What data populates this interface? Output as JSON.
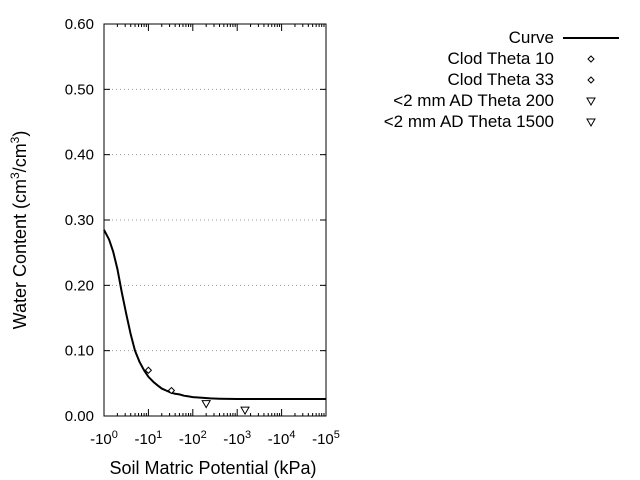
{
  "chart_data": {
    "type": "scatter",
    "xlabel": "Soil Matric Potential (kPa)",
    "ylabel": "Water Content (cm³/cm³)",
    "x_scale": "log",
    "xlim": [
      1,
      100000
    ],
    "ylim": [
      0,
      0.6
    ],
    "x_ticks": [
      {
        "value": 1,
        "base": "-10",
        "exp": "0"
      },
      {
        "value": 10,
        "base": "-10",
        "exp": "1"
      },
      {
        "value": 100,
        "base": "-10",
        "exp": "2"
      },
      {
        "value": 1000,
        "base": "-10",
        "exp": "3"
      },
      {
        "value": 10000,
        "base": "-10",
        "exp": "4"
      },
      {
        "value": 100000,
        "base": "-10",
        "exp": "5"
      }
    ],
    "y_ticks": [
      {
        "value": 0.0,
        "label": "0.00"
      },
      {
        "value": 0.1,
        "label": "0.10"
      },
      {
        "value": 0.2,
        "label": "0.20"
      },
      {
        "value": 0.3,
        "label": "0.30"
      },
      {
        "value": 0.4,
        "label": "0.40"
      },
      {
        "value": 0.5,
        "label": "0.50"
      },
      {
        "value": 0.6,
        "label": "0.60"
      }
    ],
    "grid": "horizontal dotted",
    "legend_position": "top-right",
    "series": [
      {
        "name": "Curve",
        "kind": "line",
        "points": [
          [
            1,
            0.285
          ],
          [
            1.3,
            0.27
          ],
          [
            1.6,
            0.252
          ],
          [
            2.0,
            0.225
          ],
          [
            2.5,
            0.19
          ],
          [
            3.2,
            0.155
          ],
          [
            4.0,
            0.125
          ],
          [
            5.0,
            0.1
          ],
          [
            6.3,
            0.083
          ],
          [
            8.0,
            0.07
          ],
          [
            10,
            0.06
          ],
          [
            13,
            0.052
          ],
          [
            16,
            0.047
          ],
          [
            20,
            0.042
          ],
          [
            25,
            0.039
          ],
          [
            32,
            0.036
          ],
          [
            40,
            0.034
          ],
          [
            50,
            0.033
          ],
          [
            63,
            0.031
          ],
          [
            80,
            0.03
          ],
          [
            100,
            0.029
          ],
          [
            160,
            0.028
          ],
          [
            250,
            0.027
          ],
          [
            400,
            0.0265
          ],
          [
            1000,
            0.026
          ],
          [
            10000,
            0.026
          ],
          [
            100000,
            0.026
          ]
        ]
      },
      {
        "name": "Clod Theta 10",
        "kind": "marker",
        "marker": "diamond",
        "points": [
          [
            10,
            0.07
          ]
        ]
      },
      {
        "name": "Clod Theta 33",
        "kind": "marker",
        "marker": "diamond",
        "points": [
          [
            33,
            0.039
          ]
        ]
      },
      {
        "name": "<2 mm AD Theta 200",
        "kind": "marker",
        "marker": "triangle-down",
        "points": [
          [
            200,
            0.019
          ]
        ]
      },
      {
        "name": "<2 mm AD Theta 1500",
        "kind": "marker",
        "marker": "triangle-down",
        "points": [
          [
            1500,
            0.009
          ]
        ]
      }
    ]
  }
}
